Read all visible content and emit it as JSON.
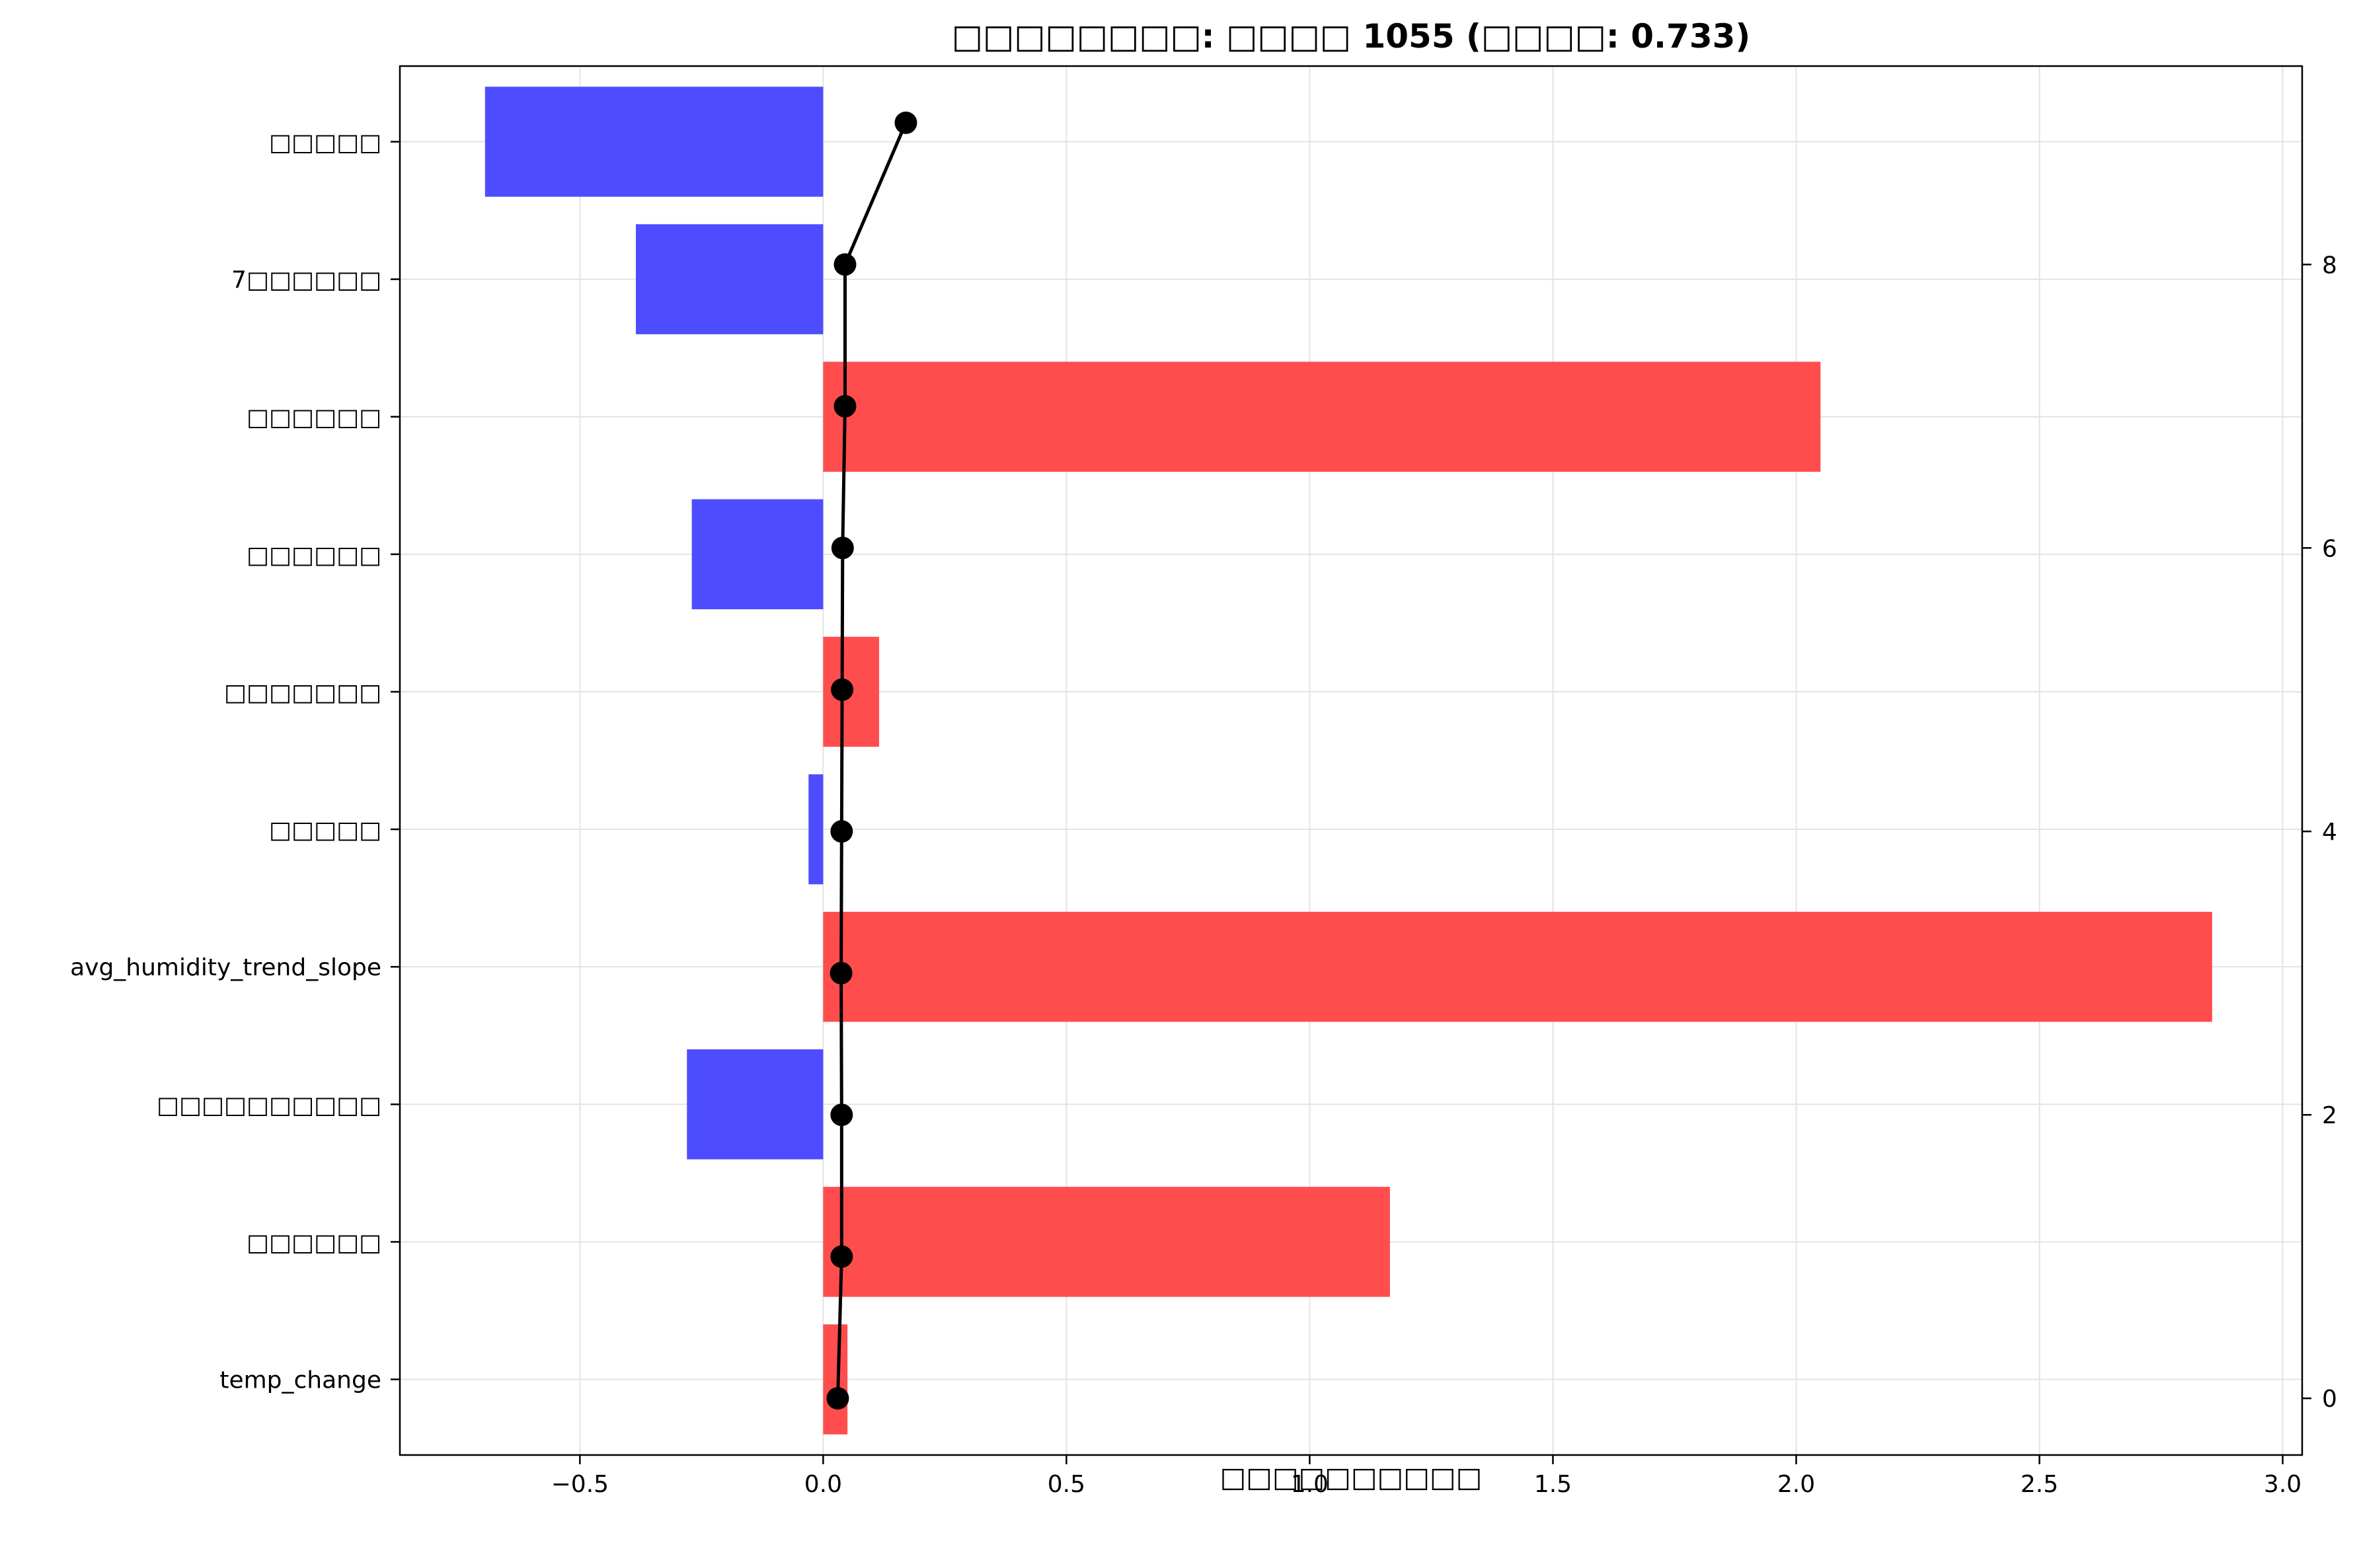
{
  "chart_data": {
    "type": "bar",
    "orientation": "horizontal",
    "title": "□□□□□□□□: □□□□ 1055 (□□□□: 0.733)",
    "xlabel": "□□□□□□□□□□",
    "ylabel": "",
    "xlim": [
      -0.87,
      3.04
    ],
    "xticks": [
      -0.5,
      0.0,
      0.5,
      1.0,
      1.5,
      2.0,
      2.5,
      3.0
    ],
    "xtick_labels": [
      "−0.5",
      "0.0",
      "0.5",
      "1.0",
      "1.5",
      "2.0",
      "2.5",
      "3.0"
    ],
    "categories": [
      "temp_change",
      "□□□□□□",
      "□□□□□□□□□□",
      "avg_humidity_trend_slope",
      "□□□□□",
      "□□□□□□□",
      "□□□□□□",
      "□□□□□□",
      "7□□□□□□",
      "□□□□□"
    ],
    "values": [
      0.05,
      1.165,
      -0.28,
      2.855,
      -0.03,
      0.115,
      -0.27,
      2.05,
      -0.385,
      -0.695
    ],
    "positive_color": "#ff4d4d",
    "negative_color": "#4d4dff",
    "grid": true,
    "secondary_axis": {
      "side": "right",
      "ylim": [
        -0.4,
        9.4
      ],
      "yticks": [
        0,
        2,
        4,
        6,
        8
      ],
      "ytick_labels": [
        "0",
        "2",
        "4",
        "6",
        "8"
      ]
    },
    "line_series": {
      "color": "#000000",
      "marker": "circle",
      "points": [
        {
          "x": 0.03,
          "y": 0
        },
        {
          "x": 0.038,
          "y": 1
        },
        {
          "x": 0.038,
          "y": 2
        },
        {
          "x": 0.037,
          "y": 3
        },
        {
          "x": 0.038,
          "y": 4
        },
        {
          "x": 0.039,
          "y": 5
        },
        {
          "x": 0.04,
          "y": 6
        },
        {
          "x": 0.045,
          "y": 7
        },
        {
          "x": 0.045,
          "y": 8
        },
        {
          "x": 0.17,
          "y": 9
        }
      ]
    }
  }
}
